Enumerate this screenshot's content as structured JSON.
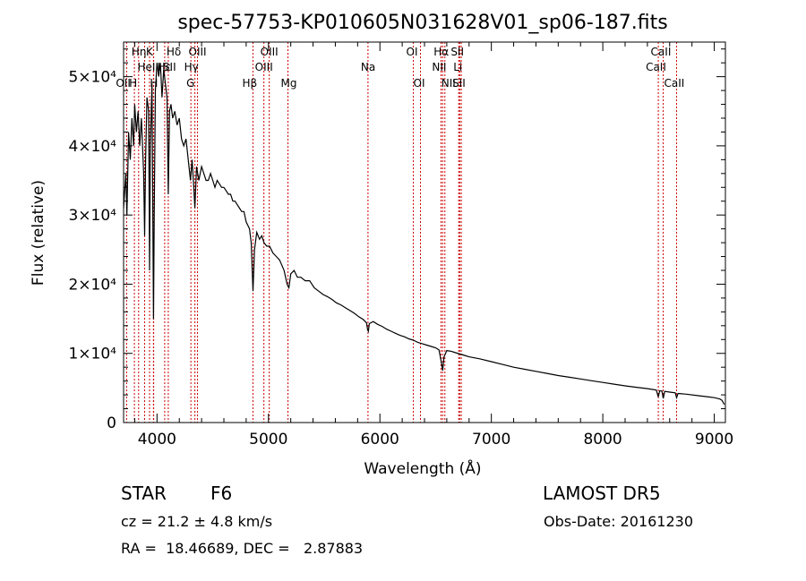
{
  "chart_data": {
    "type": "line",
    "title": "spec-57753-KP010605N031628V01_sp06-187.fits",
    "xlabel": "Wavelength (Å)",
    "ylabel": "Flux (relative)",
    "xlim": [
      3700,
      9100
    ],
    "ylim": [
      0,
      55000
    ],
    "x_ticks": [
      {
        "value": 4000,
        "label": "4000"
      },
      {
        "value": 5000,
        "label": "5000"
      },
      {
        "value": 6000,
        "label": "6000"
      },
      {
        "value": 7000,
        "label": "7000"
      },
      {
        "value": 8000,
        "label": "8000"
      },
      {
        "value": 9000,
        "label": "9000"
      }
    ],
    "y_ticks": [
      {
        "value": 0,
        "label": "0"
      },
      {
        "value": 10000,
        "label": "1×10⁴"
      },
      {
        "value": 20000,
        "label": "2×10⁴"
      },
      {
        "value": 30000,
        "label": "3×10⁴"
      },
      {
        "value": 40000,
        "label": "4×10⁴"
      },
      {
        "value": 50000,
        "label": "5×10⁴"
      }
    ],
    "grid": false,
    "line_color": "#000000",
    "marker_color": "#cc0000",
    "series": [
      {
        "values": [
          [
            3700,
            31000
          ],
          [
            3720,
            36000
          ],
          [
            3730,
            30000
          ],
          [
            3745,
            42000
          ],
          [
            3760,
            38000
          ],
          [
            3775,
            44000
          ],
          [
            3790,
            40000
          ],
          [
            3800,
            46000
          ],
          [
            3815,
            42000
          ],
          [
            3830,
            45000
          ],
          [
            3845,
            40000
          ],
          [
            3860,
            44000
          ],
          [
            3880,
            36000
          ],
          [
            3889,
            27000
          ],
          [
            3898,
            38000
          ],
          [
            3910,
            47000
          ],
          [
            3925,
            45000
          ],
          [
            3933,
            22000
          ],
          [
            3940,
            40000
          ],
          [
            3955,
            49000
          ],
          [
            3968,
            15000
          ],
          [
            3975,
            30000
          ],
          [
            3985,
            48000
          ],
          [
            4000,
            52000
          ],
          [
            4015,
            50000
          ],
          [
            4030,
            52000
          ],
          [
            4045,
            47000
          ],
          [
            4060,
            51000
          ],
          [
            4075,
            49000
          ],
          [
            4090,
            47000
          ],
          [
            4101,
            33000
          ],
          [
            4112,
            45000
          ],
          [
            4125,
            46000
          ],
          [
            4140,
            44000
          ],
          [
            4160,
            45000
          ],
          [
            4180,
            43000
          ],
          [
            4200,
            44000
          ],
          [
            4220,
            41000
          ],
          [
            4240,
            40000
          ],
          [
            4260,
            41000
          ],
          [
            4280,
            38000
          ],
          [
            4300,
            35000
          ],
          [
            4315,
            38000
          ],
          [
            4330,
            34000
          ],
          [
            4340,
            31000
          ],
          [
            4355,
            37000
          ],
          [
            4375,
            35000
          ],
          [
            4400,
            37000
          ],
          [
            4420,
            36000
          ],
          [
            4440,
            35000
          ],
          [
            4460,
            35000
          ],
          [
            4480,
            36000
          ],
          [
            4500,
            35000
          ],
          [
            4520,
            34000
          ],
          [
            4540,
            35000
          ],
          [
            4560,
            34500
          ],
          [
            4580,
            34000
          ],
          [
            4600,
            34000
          ],
          [
            4620,
            33500
          ],
          [
            4640,
            33000
          ],
          [
            4660,
            33000
          ],
          [
            4680,
            32000
          ],
          [
            4700,
            32000
          ],
          [
            4720,
            31500
          ],
          [
            4740,
            31000
          ],
          [
            4760,
            30500
          ],
          [
            4780,
            30500
          ],
          [
            4800,
            29000
          ],
          [
            4830,
            28000
          ],
          [
            4845,
            26000
          ],
          [
            4861,
            19000
          ],
          [
            4875,
            25000
          ],
          [
            4895,
            27500
          ],
          [
            4920,
            26500
          ],
          [
            4940,
            27000
          ],
          [
            4960,
            26000
          ],
          [
            4985,
            25500
          ],
          [
            5010,
            25500
          ],
          [
            5040,
            24500
          ],
          [
            5070,
            24000
          ],
          [
            5100,
            23500
          ],
          [
            5140,
            22000
          ],
          [
            5167,
            20000
          ],
          [
            5183,
            19500
          ],
          [
            5200,
            21500
          ],
          [
            5230,
            22000
          ],
          [
            5260,
            21000
          ],
          [
            5290,
            21000
          ],
          [
            5330,
            20500
          ],
          [
            5370,
            20500
          ],
          [
            5410,
            19500
          ],
          [
            5450,
            19000
          ],
          [
            5490,
            18500
          ],
          [
            5530,
            18200
          ],
          [
            5570,
            17800
          ],
          [
            5610,
            17300
          ],
          [
            5650,
            17000
          ],
          [
            5690,
            16600
          ],
          [
            5730,
            16200
          ],
          [
            5770,
            15800
          ],
          [
            5810,
            15300
          ],
          [
            5850,
            14900
          ],
          [
            5880,
            14400
          ],
          [
            5890,
            13400
          ],
          [
            5896,
            13200
          ],
          [
            5905,
            14300
          ],
          [
            5940,
            14600
          ],
          [
            5980,
            14200
          ],
          [
            6020,
            13900
          ],
          [
            6060,
            13500
          ],
          [
            6100,
            13200
          ],
          [
            6140,
            12900
          ],
          [
            6180,
            12600
          ],
          [
            6220,
            12400
          ],
          [
            6260,
            12100
          ],
          [
            6300,
            11900
          ],
          [
            6340,
            11600
          ],
          [
            6380,
            11400
          ],
          [
            6420,
            11200
          ],
          [
            6460,
            11000
          ],
          [
            6500,
            10800
          ],
          [
            6530,
            10500
          ],
          [
            6550,
            8800
          ],
          [
            6563,
            7500
          ],
          [
            6575,
            9500
          ],
          [
            6600,
            10400
          ],
          [
            6640,
            10300
          ],
          [
            6680,
            10100
          ],
          [
            6720,
            9900
          ],
          [
            6760,
            9700
          ],
          [
            6800,
            9500
          ],
          [
            6900,
            9200
          ],
          [
            7000,
            8800
          ],
          [
            7100,
            8400
          ],
          [
            7200,
            8000
          ],
          [
            7300,
            7700
          ],
          [
            7400,
            7400
          ],
          [
            7500,
            7100
          ],
          [
            7600,
            6800
          ],
          [
            7700,
            6550
          ],
          [
            7800,
            6300
          ],
          [
            7900,
            6050
          ],
          [
            8000,
            5800
          ],
          [
            8100,
            5550
          ],
          [
            8200,
            5300
          ],
          [
            8300,
            5100
          ],
          [
            8400,
            4900
          ],
          [
            8480,
            4700
          ],
          [
            8498,
            3700
          ],
          [
            8510,
            4600
          ],
          [
            8530,
            4550
          ],
          [
            8542,
            3500
          ],
          [
            8555,
            4500
          ],
          [
            8600,
            4400
          ],
          [
            8650,
            4300
          ],
          [
            8662,
            3600
          ],
          [
            8675,
            4200
          ],
          [
            8750,
            4100
          ],
          [
            8850,
            3900
          ],
          [
            8950,
            3700
          ],
          [
            9000,
            3600
          ],
          [
            9050,
            3400
          ],
          [
            9070,
            3200
          ],
          [
            9090,
            2600
          ]
        ]
      }
    ],
    "lines": [
      {
        "wl": 3727,
        "label": "OII",
        "row": 3,
        "x_off": -12
      },
      {
        "wl": 3797,
        "label": "H",
        "row": 3,
        "x_off": -6
      },
      {
        "wl": 3835,
        "label": "Hη",
        "row": 1,
        "x_off": -8
      },
      {
        "wl": 3889,
        "label": "HeI",
        "row": 2,
        "x_off": -8
      },
      {
        "wl": 3933,
        "label": "K",
        "row": 1,
        "x_off": -4
      },
      {
        "wl": 3968,
        "label": "H",
        "row": 3,
        "x_off": -4
      },
      {
        "wl": 3970,
        "label": "Hε",
        "row": 2,
        "x_off": 4
      },
      {
        "wl": 4069,
        "label": "SII",
        "row": 2,
        "x_off": -2
      },
      {
        "wl": 4101,
        "label": "Hδ",
        "row": 1,
        "x_off": -2
      },
      {
        "wl": 4304,
        "label": "G",
        "row": 3,
        "x_off": -5
      },
      {
        "wl": 4340,
        "label": "Hγ",
        "row": 2,
        "x_off": -12
      },
      {
        "wl": 4363,
        "label": "OIII",
        "row": 1,
        "x_off": -10
      },
      {
        "wl": 4861,
        "label": "Hβ",
        "row": 3,
        "x_off": -12
      },
      {
        "wl": 4959,
        "label": "OIII",
        "row": 2,
        "x_off": -10
      },
      {
        "wl": 5007,
        "label": "OIII",
        "row": 1,
        "x_off": -10
      },
      {
        "wl": 5175,
        "label": "Mg",
        "row": 3,
        "x_off": -8
      },
      {
        "wl": 5893,
        "label": "Na",
        "row": 2,
        "x_off": -8
      },
      {
        "wl": 6300,
        "label": "OI",
        "row": 1,
        "x_off": -8
      },
      {
        "wl": 6364,
        "label": "OI",
        "row": 3,
        "x_off": -8
      },
      {
        "wl": 6548,
        "label": "NII",
        "row": 2,
        "x_off": -10
      },
      {
        "wl": 6563,
        "label": "Hα",
        "row": 1,
        "x_off": -10
      },
      {
        "wl": 6583,
        "label": "NII",
        "row": 3,
        "x_off": -4
      },
      {
        "wl": 6707,
        "label": "Li",
        "row": 2,
        "x_off": -6
      },
      {
        "wl": 6716,
        "label": "SII",
        "row": 1,
        "x_off": -10
      },
      {
        "wl": 6730,
        "label": "SII",
        "row": 3,
        "x_off": -10
      },
      {
        "wl": 8498,
        "label": "CaII",
        "row": 2,
        "x_off": -14
      },
      {
        "wl": 8542,
        "label": "CaII",
        "row": 1,
        "x_off": -14
      },
      {
        "wl": 8662,
        "label": "CaII",
        "row": 3,
        "x_off": -14
      }
    ]
  },
  "info": {
    "class": "STAR",
    "subclass": "F6",
    "survey": "LAMOST DR5",
    "cz": "cz = 21.2 ± 4.8 km/s",
    "obs_date": "Obs-Date: 20161230",
    "radec": "RA =  18.46689, DEC =   2.87883"
  }
}
